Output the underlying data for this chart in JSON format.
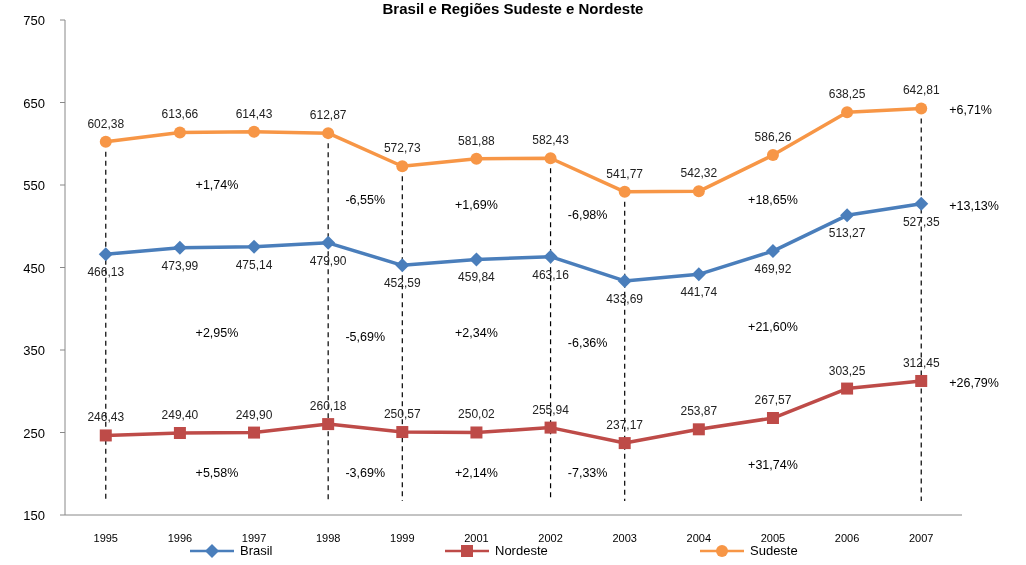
{
  "chart_data": {
    "type": "line",
    "title": "Brasil e Regiões Sudeste e Nordeste",
    "categories": [
      "1995",
      "1996",
      "1997",
      "1998",
      "1999",
      "2001",
      "2002",
      "2003",
      "2004",
      "2005",
      "2006",
      "2007"
    ],
    "series": [
      {
        "name": "Brasil",
        "color": "#4a7ebb",
        "marker": "diamond",
        "values": [
          466.13,
          473.99,
          475.14,
          479.9,
          452.59,
          459.84,
          463.16,
          433.69,
          441.74,
          469.92,
          513.27,
          527.35
        ],
        "value_labels": [
          "466,13",
          "473,99",
          "475,14",
          "479,90",
          "452,59",
          "459,84",
          "463,16",
          "433,69",
          "441,74",
          "469,92",
          "513,27",
          "527,35"
        ]
      },
      {
        "name": "Nordeste",
        "color": "#be4b48",
        "marker": "square",
        "values": [
          246.43,
          249.4,
          249.9,
          260.18,
          250.57,
          250.02,
          255.94,
          237.17,
          253.87,
          267.57,
          303.25,
          312.45
        ],
        "value_labels": [
          "246,43",
          "249,40",
          "249,90",
          "260,18",
          "250,57",
          "250,02",
          "255,94",
          "237,17",
          "253,87",
          "267,57",
          "303,25",
          "312,45"
        ]
      },
      {
        "name": "Sudeste",
        "color": "#f79646",
        "marker": "circle",
        "values": [
          602.38,
          613.66,
          614.43,
          612.87,
          572.73,
          581.88,
          582.43,
          541.77,
          542.32,
          586.26,
          638.25,
          642.81
        ],
        "value_labels": [
          "602,38",
          "613,66",
          "614,43",
          "612,87",
          "572,73",
          "581,88",
          "582,43",
          "541,77",
          "542,32",
          "586,26",
          "638,25",
          "642,81"
        ]
      }
    ],
    "ylim": [
      150,
      750
    ],
    "yticks": [
      150,
      250,
      350,
      450,
      550,
      650,
      750
    ],
    "grid": false,
    "legend": "bottom",
    "line_style": "solid",
    "ref_lines": [
      {
        "axis": "x",
        "value": "1995",
        "line_style": "dashed"
      },
      {
        "axis": "x",
        "value": "1998",
        "line_style": "dashed"
      },
      {
        "axis": "x",
        "value": "1999",
        "line_style": "dashed"
      },
      {
        "axis": "x",
        "value": "2002",
        "line_style": "dashed"
      },
      {
        "axis": "x",
        "value": "2003",
        "line_style": "dashed"
      },
      {
        "axis": "x",
        "value": "2007",
        "line_style": "dashed"
      }
    ],
    "annotations": [
      "+1,74%",
      "+2,95%",
      "+5,58%",
      "-6,55%",
      "-5,69%",
      "-3,69%",
      "+1,69%",
      "+2,34%",
      "+2,14%",
      "-6,98%",
      "-6,36%",
      "-7,33%",
      "+18,65%",
      "+21,60%",
      "+31,74%",
      "+6,71%",
      "+13,13%",
      "+26,79%"
    ]
  }
}
